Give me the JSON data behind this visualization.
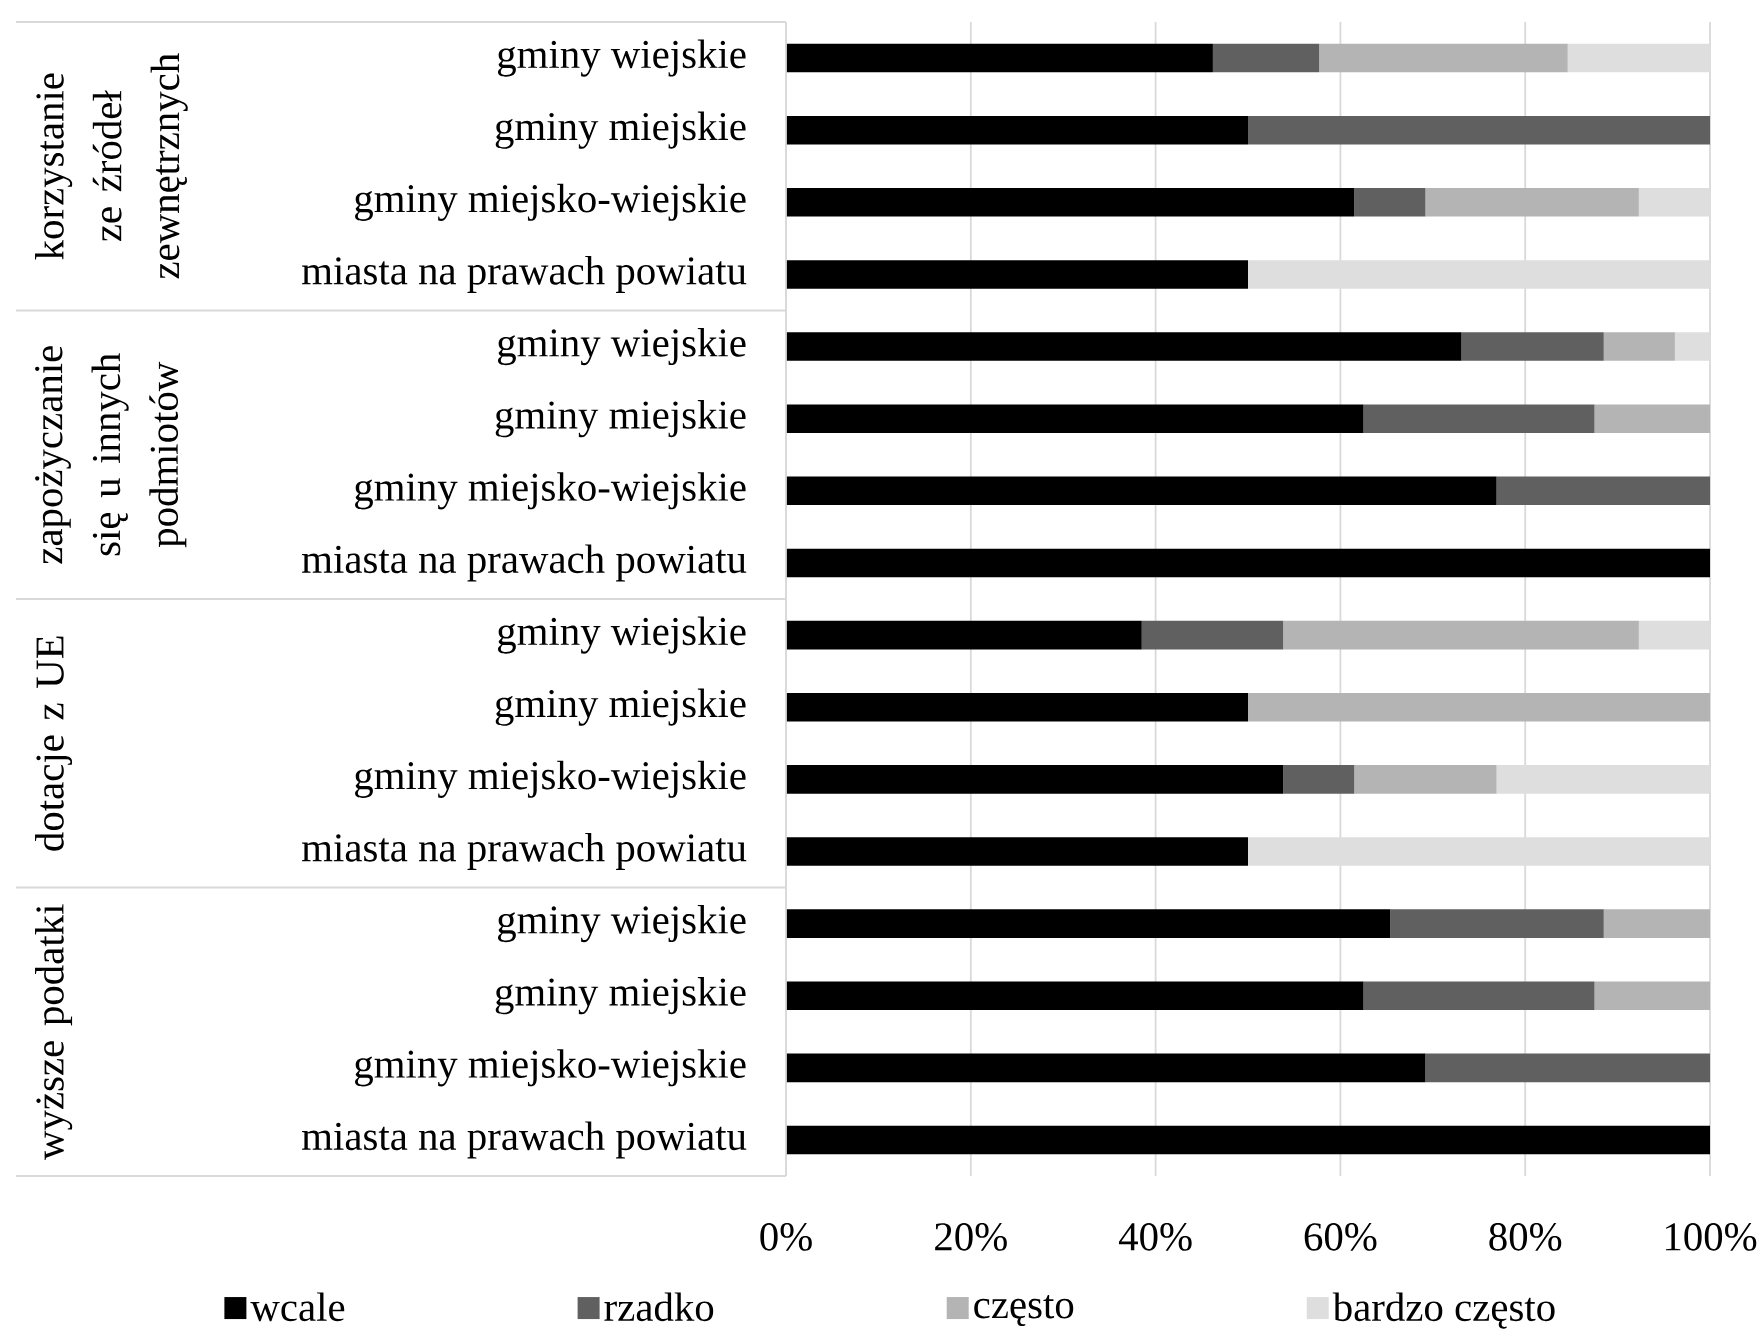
{
  "chart_data": {
    "type": "bar",
    "orientation": "horizontal",
    "stacked": true,
    "categories": [
      "gminy wiejskie",
      "gminy miejskie",
      "gminy miejsko-wiejskie",
      "miasta na prawach powiatu",
      "gminy wiejskie",
      "gminy miejskie",
      "gminy miejsko-wiejskie",
      "miasta na prawach powiatu",
      "gminy wiejskie",
      "gminy miejskie",
      "gminy miejsko-wiejskie",
      "miasta na prawach powiatu",
      "gminy wiejskie",
      "gminy miejskie",
      "gminy miejsko-wiejskie",
      "miasta na prawach powiatu"
    ],
    "series": [
      {
        "name": "wcale",
        "color": "#000000",
        "values": [
          46.2,
          50,
          61.5,
          50,
          73.1,
          62.5,
          76.9,
          100,
          38.5,
          50,
          53.8,
          50,
          65.4,
          62.5,
          69.2,
          100
        ]
      },
      {
        "name": "rzadko",
        "color": "#606060",
        "values": [
          11.5,
          50,
          7.7,
          0,
          15.4,
          25,
          23.1,
          0,
          15.3,
          0,
          7.7,
          0,
          23.1,
          25,
          30.8,
          0
        ]
      },
      {
        "name": "często",
        "color": "#b4b4b4",
        "values": [
          26.9,
          0,
          23.1,
          0,
          7.7,
          12.5,
          0,
          0,
          38.5,
          50,
          15.4,
          0,
          11.5,
          12.5,
          0,
          0
        ]
      },
      {
        "name": "bardzo często",
        "color": "#dedede",
        "values": [
          15.4,
          0,
          7.7,
          50,
          3.8,
          0,
          0,
          0,
          7.7,
          0,
          23.1,
          50,
          0,
          0,
          0,
          0
        ]
      }
    ],
    "xlim": [
      0,
      100
    ],
    "xticks": [
      {
        "value": 0,
        "label": "0%"
      },
      {
        "value": 20,
        "label": "20%"
      },
      {
        "value": 40,
        "label": "40%"
      },
      {
        "value": 60,
        "label": "60%"
      },
      {
        "value": 80,
        "label": "80%"
      },
      {
        "value": 100,
        "label": "100%"
      }
    ],
    "grid": "x",
    "legend": "bottom",
    "annotations": [
      "korzystanie ze źródeł zewnętrznych",
      "zapożyczanie się u innych podmiotów",
      "dotacje z UE",
      "wyższe podatki"
    ]
  }
}
